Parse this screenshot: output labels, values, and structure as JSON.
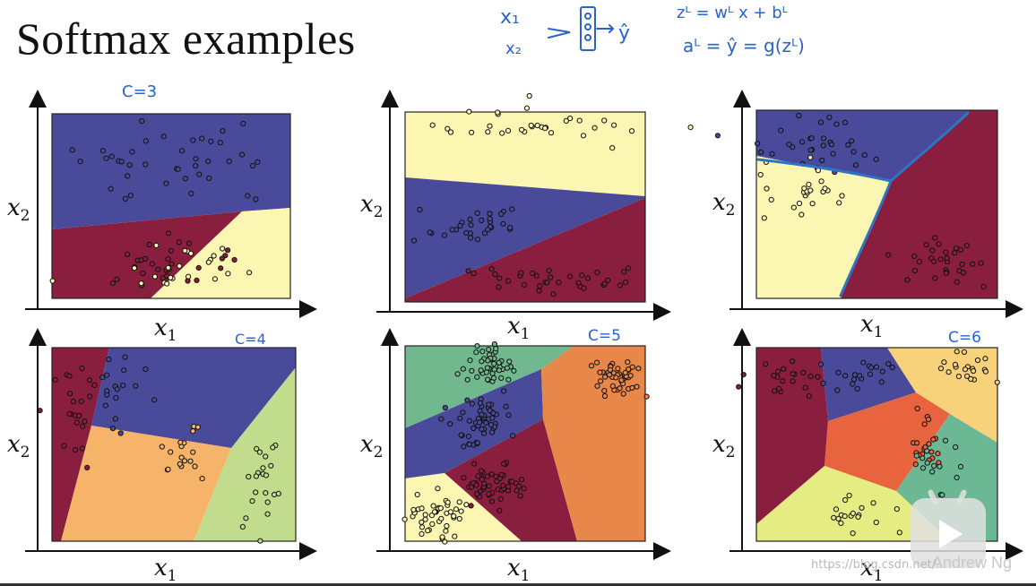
{
  "title": "Softmax examples",
  "annotations": {
    "x1": "x₁",
    "x2": "x₂",
    "yhat": "ŷ",
    "eq1": "zᴸ = wᴸ x + bᴸ",
    "eq2": "aᴸ = ŷ = g(zᴸ)",
    "c3": "C=3",
    "c4": "C=4",
    "c5": "C=5",
    "c6": "C=6"
  },
  "axis_labels": {
    "x": "x",
    "x_sub": "1",
    "y": "x",
    "y_sub": "2"
  },
  "panels": [
    {
      "id": "p1",
      "classes": 3,
      "colors": [
        "#4a4a9a",
        "#8a1e3e",
        "#fbf6b2"
      ]
    },
    {
      "id": "p2",
      "classes": 3,
      "colors": [
        "#fbf6b2",
        "#4a4a9a",
        "#8a1e3e"
      ]
    },
    {
      "id": "p3",
      "classes": 3,
      "colors": [
        "#4a4a9a",
        "#fbf6b2",
        "#8a1e3e"
      ]
    },
    {
      "id": "p4",
      "classes": 4,
      "colors": [
        "#8a1e3e",
        "#4a4a9a",
        "#f6b36a",
        "#c0dc8c"
      ]
    },
    {
      "id": "p5",
      "classes": 5,
      "colors": [
        "#72b88e",
        "#4a4a9a",
        "#8a1e3e",
        "#e8874a",
        "#fbf6b2"
      ]
    },
    {
      "id": "p6",
      "classes": 6,
      "colors": [
        "#8a1e3e",
        "#4a4a9a",
        "#f8d27a",
        "#e8643e",
        "#6cb894",
        "#e4ec82"
      ]
    }
  ],
  "author": "Andrew Ng",
  "watermark": "https://blog.csdn.net/..."
}
